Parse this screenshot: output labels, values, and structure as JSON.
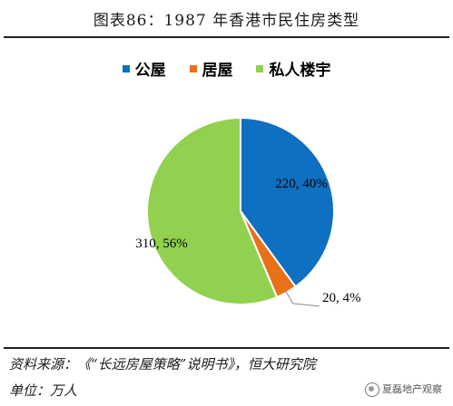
{
  "figure": {
    "title": "图表86：1987 年香港市民住房类型",
    "source": "资料来源：《“长远房屋策略”说明书》，恒大研究院",
    "unit": "单位：万人",
    "watermark": "夏磊地产观察"
  },
  "colors": {
    "public": "#0f6fc0",
    "hos": "#e8711a",
    "private": "#92d050"
  },
  "chart_data": {
    "type": "pie",
    "title": "",
    "legend_position": "top",
    "slices": [
      {
        "name": "公屋",
        "value": 220,
        "percent": 40,
        "label": "220, 40%",
        "color": "#0f6fc0"
      },
      {
        "name": "居屋",
        "value": 20,
        "percent": 4,
        "label": "20, 4%",
        "color": "#e8711a"
      },
      {
        "name": "私人楼宇",
        "value": 310,
        "percent": 56,
        "label": "310, 56%",
        "color": "#92d050"
      }
    ]
  }
}
